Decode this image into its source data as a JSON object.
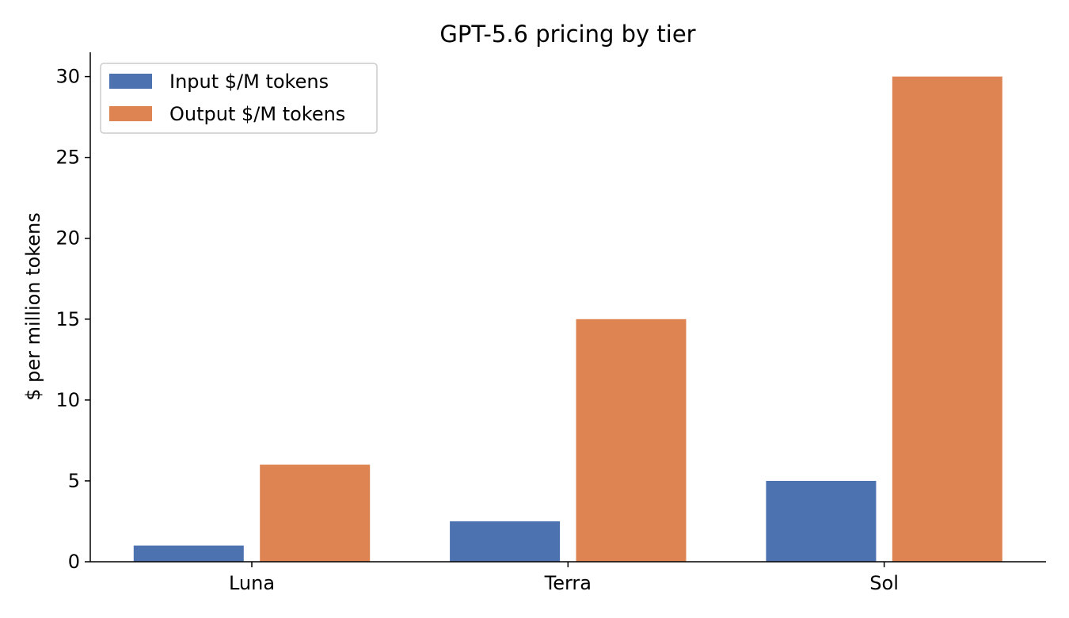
{
  "chart_data": {
    "type": "bar",
    "title": "GPT-5.6 pricing by tier",
    "xlabel": "",
    "ylabel": "$ per million tokens",
    "categories": [
      "Luna",
      "Terra",
      "Sol"
    ],
    "series": [
      {
        "name": "Input $/M tokens",
        "values": [
          1,
          2.5,
          5
        ],
        "color": "#4c72b0"
      },
      {
        "name": "Output $/M tokens",
        "values": [
          6,
          15,
          30
        ],
        "color": "#dd8452"
      }
    ],
    "ylim": [
      0,
      31.5
    ],
    "yticks": [
      0,
      5,
      10,
      15,
      20,
      25,
      30
    ],
    "grid": false,
    "legend": "top-left"
  }
}
